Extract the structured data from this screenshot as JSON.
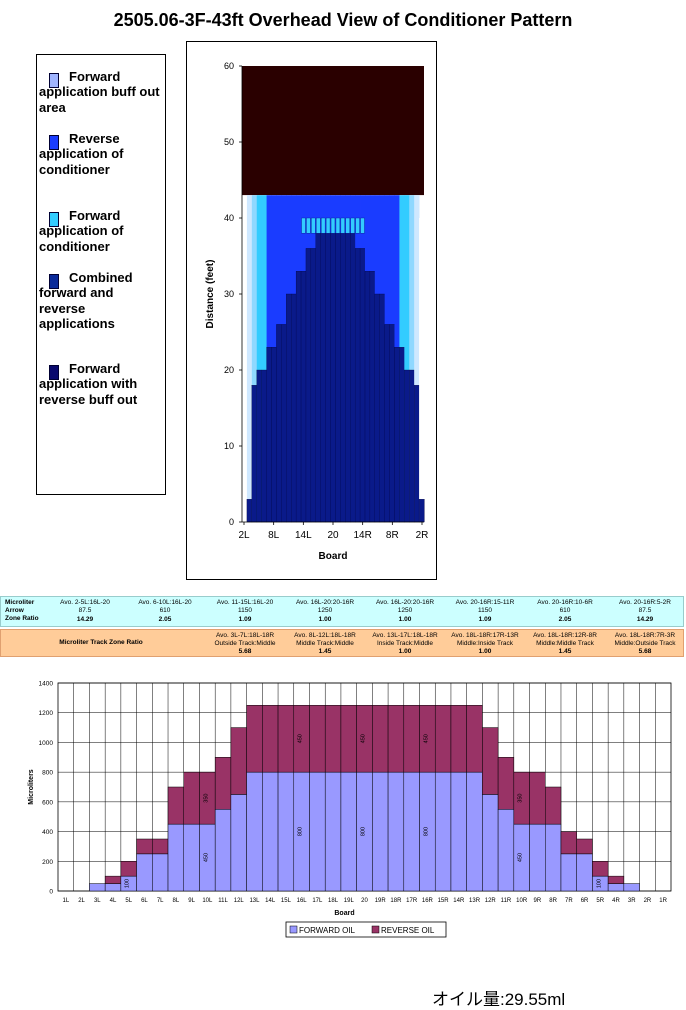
{
  "title": "2505.06-3F-43ft Overhead View of Conditioner Pattern",
  "legend": [
    {
      "lines": [
        "Forward",
        "application buff out",
        "area"
      ],
      "color": "#9fb4ff",
      "icon": "light-blue-gradient-swatch"
    },
    {
      "lines": [
        "Reverse",
        "application of",
        "conditioner"
      ],
      "color": "#1a3cff",
      "icon": "blue-swatch"
    },
    {
      "lines": [
        "Forward",
        "application of",
        "conditioner"
      ],
      "color": "#33ccff",
      "icon": "cyan-swatch"
    },
    {
      "lines": [
        "Combined",
        "forward and",
        "reverse",
        "applications"
      ],
      "color": "#0a2a9a",
      "icon": "dark-blue-swatch"
    },
    {
      "lines": [
        "Forward",
        "application with",
        "reverse buff out"
      ],
      "color": "#0a0a6e",
      "icon": "navy-swatch"
    }
  ],
  "tables": {
    "row1_labels": [
      "Microliter",
      "Arrow",
      "Zone Ratio"
    ],
    "row1": [
      {
        "zone": "Avo. 2-5L:16L-20",
        "ul": "87.5",
        "ratio": "14.29"
      },
      {
        "zone": "Avo. 6-10L:16L-20",
        "ul": "610",
        "ratio": "2.05"
      },
      {
        "zone": "Avo. 11-15L:16L-20",
        "ul": "1150",
        "ratio": "1.09"
      },
      {
        "zone": "Avo. 16L-20:20-16R",
        "ul": "1250",
        "ratio": "1.00"
      },
      {
        "zone": "Avo. 16L-20:20-16R",
        "ul": "1250",
        "ratio": "1.00"
      },
      {
        "zone": "Avo. 20-16R:15-11R",
        "ul": "1150",
        "ratio": "1.09"
      },
      {
        "zone": "Avo. 20-16R:10-6R",
        "ul": "610",
        "ratio": "2.05"
      },
      {
        "zone": "Avo. 20-16R:5-2R",
        "ul": "87.5",
        "ratio": "14.29"
      }
    ],
    "row2_label": "Microliter Track Zone Ratio",
    "row2": [
      {
        "zone": "Avo. 3L-7L:18L-18R",
        "desc": "Outside Track:Middle",
        "ratio": "5.68"
      },
      {
        "zone": "Avo. 8L-12L:18L-18R",
        "desc": "Middle Track:Middle",
        "ratio": "1.45"
      },
      {
        "zone": "Avo. 13L-17L:18L-18R",
        "desc": "Inside Track:Middle",
        "ratio": "1.00"
      },
      {
        "zone": "Avo. 18L-18R:17R-13R",
        "desc": "Middle:Inside Track",
        "ratio": "1.00"
      },
      {
        "zone": "Avo. 18L-18R:12R-8R",
        "desc": "Middle:Middle Track",
        "ratio": "1.45"
      },
      {
        "zone": "Avo. 18L-18R:7R-3R",
        "desc": "Middle:Outside Track",
        "ratio": "5.68"
      }
    ]
  },
  "chart_data": [
    {
      "type": "heatmap",
      "title": "",
      "xlabel": "Board",
      "ylabel": "Distance (feet)",
      "ylim": [
        0,
        60
      ],
      "yticks": [
        0,
        10,
        20,
        30,
        40,
        50,
        60
      ],
      "xticks": [
        "2L",
        "8L",
        "14L",
        "20",
        "14R",
        "8R",
        "2R"
      ],
      "oil_length_ft": 43,
      "boards": [
        "2L",
        "3L",
        "4L",
        "5L",
        "6L",
        "7L",
        "8L",
        "9L",
        "10L",
        "11L",
        "12L",
        "13L",
        "14L",
        "15L",
        "16L",
        "17L",
        "18L",
        "19L",
        "20",
        "19R",
        "18R",
        "17R",
        "16R",
        "15R",
        "14R",
        "13R",
        "12R",
        "11R",
        "10R",
        "9R",
        "8R",
        "7R",
        "6R",
        "5R",
        "4R",
        "3R",
        "2R"
      ],
      "core_length_ft": [
        0,
        3,
        18,
        20,
        20,
        23,
        23,
        26,
        26,
        30,
        30,
        33,
        33,
        36,
        36,
        38,
        38,
        38,
        38,
        38,
        38,
        38,
        38,
        36,
        36,
        33,
        33,
        30,
        30,
        26,
        26,
        23,
        23,
        20,
        20,
        18,
        3
      ],
      "cyan_band_ft": [
        38,
        40
      ],
      "colors": {
        "dry": "#2a0000",
        "core": "#0a1a8a",
        "reverse": "#1a3cff",
        "forward": "#33ccff",
        "buff": "#cfe8ff"
      }
    },
    {
      "type": "bar",
      "stacked": true,
      "xlabel": "Board",
      "ylabel": "Microliters",
      "ylim": [
        0,
        1400
      ],
      "yticks": [
        0,
        200,
        400,
        600,
        800,
        1000,
        1200,
        1400
      ],
      "categories": [
        "1L",
        "2L",
        "3L",
        "4L",
        "5L",
        "6L",
        "7L",
        "8L",
        "9L",
        "10L",
        "11L",
        "12L",
        "13L",
        "14L",
        "15L",
        "16L",
        "17L",
        "18L",
        "19L",
        "20",
        "19R",
        "18R",
        "17R",
        "16R",
        "15R",
        "14R",
        "13R",
        "12R",
        "11R",
        "10R",
        "9R",
        "8R",
        "7R",
        "6R",
        "5R",
        "4R",
        "3R",
        "2R",
        "1R"
      ],
      "series": [
        {
          "name": "FORWARD OIL",
          "color": "#9999ff",
          "values": [
            0,
            0,
            50,
            50,
            100,
            250,
            250,
            450,
            450,
            450,
            550,
            650,
            800,
            800,
            800,
            800,
            800,
            800,
            800,
            800,
            800,
            800,
            800,
            800,
            800,
            800,
            800,
            650,
            550,
            450,
            450,
            450,
            250,
            250,
            100,
            50,
            50,
            0,
            0
          ]
        },
        {
          "name": "REVERSE OIL",
          "color": "#993366",
          "values": [
            0,
            0,
            0,
            50,
            100,
            100,
            100,
            250,
            350,
            350,
            350,
            450,
            450,
            450,
            450,
            450,
            450,
            450,
            450,
            450,
            450,
            450,
            450,
            450,
            450,
            450,
            450,
            450,
            350,
            350,
            350,
            250,
            150,
            100,
            100,
            50,
            0,
            0,
            0
          ]
        }
      ],
      "segment_labels": [
        {
          "index": 4,
          "series": 0,
          "text": "100"
        },
        {
          "index": 9,
          "series": 0,
          "text": "450"
        },
        {
          "index": 9,
          "series": 1,
          "text": "350"
        },
        {
          "index": 15,
          "series": 0,
          "text": "800"
        },
        {
          "index": 15,
          "series": 1,
          "text": "450"
        },
        {
          "index": 19,
          "series": 0,
          "text": "800"
        },
        {
          "index": 19,
          "series": 1,
          "text": "450"
        },
        {
          "index": 23,
          "series": 0,
          "text": "800"
        },
        {
          "index": 23,
          "series": 1,
          "text": "450"
        },
        {
          "index": 29,
          "series": 0,
          "text": "450"
        },
        {
          "index": 29,
          "series": 1,
          "text": "350"
        },
        {
          "index": 34,
          "series": 0,
          "text": "100"
        }
      ]
    }
  ],
  "oil_volume": "オイル量:29.55ml"
}
